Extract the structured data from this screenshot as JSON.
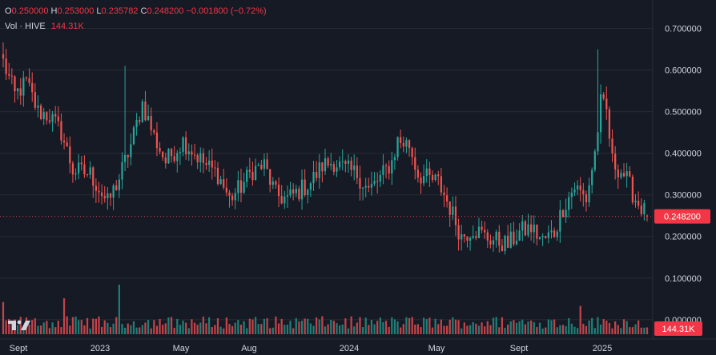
{
  "header": {
    "ohlc": [
      {
        "key": "O",
        "value": "0.250000"
      },
      {
        "key": "H",
        "value": "0.253000"
      },
      {
        "key": "L",
        "value": "0.235782"
      },
      {
        "key": "C",
        "value": "0.248200"
      }
    ],
    "change": "−0.001800 (−0.72%)",
    "vol_label": "Vol · HIVE",
    "vol_value": "144.31K"
  },
  "colors": {
    "up": "#26a69a",
    "down": "#ef5350",
    "up_vol": "#1f7f77",
    "down_vol": "#c2444a",
    "grid": "#262a34",
    "text": "#d1d4dc",
    "background": "#161a25",
    "last_price": "#f23645"
  },
  "icons": {
    "logo": "tradingview-logo-icon"
  },
  "chart_data": {
    "type": "candlestick",
    "symbol": "HIVE",
    "y_ticks": [
      "0.700000",
      "0.600000",
      "0.500000",
      "0.400000",
      "0.300000",
      "0.200000",
      "0.100000",
      "0.000000"
    ],
    "y_range": [
      -0.01,
      0.73
    ],
    "x_ticks": [
      "Sept",
      "2023",
      "May",
      "Aug",
      "2024",
      "May",
      "Sept",
      "2025"
    ],
    "last_price_label": "0.248200",
    "last_volume_label": "144.31K",
    "volume_max_k": 1050,
    "keypoints": [
      [
        0,
        0.62
      ],
      [
        4,
        0.54
      ],
      [
        8,
        0.57
      ],
      [
        12,
        0.5
      ],
      [
        16,
        0.49
      ],
      [
        20,
        0.45
      ],
      [
        24,
        0.36
      ],
      [
        30,
        0.35
      ],
      [
        36,
        0.28
      ],
      [
        40,
        0.34
      ],
      [
        44,
        0.42
      ],
      [
        48,
        0.52
      ],
      [
        52,
        0.44
      ],
      [
        56,
        0.38
      ],
      [
        62,
        0.43
      ],
      [
        66,
        0.4
      ],
      [
        70,
        0.37
      ],
      [
        74,
        0.35
      ],
      [
        78,
        0.29
      ],
      [
        82,
        0.32
      ],
      [
        86,
        0.36
      ],
      [
        90,
        0.37
      ],
      [
        94,
        0.3
      ],
      [
        98,
        0.29
      ],
      [
        102,
        0.31
      ],
      [
        106,
        0.33
      ],
      [
        110,
        0.37
      ],
      [
        114,
        0.38
      ],
      [
        118,
        0.36
      ],
      [
        122,
        0.35
      ],
      [
        126,
        0.31
      ],
      [
        130,
        0.34
      ],
      [
        134,
        0.38
      ],
      [
        136,
        0.43
      ],
      [
        140,
        0.42
      ],
      [
        143,
        0.35
      ],
      [
        146,
        0.34
      ],
      [
        150,
        0.33
      ],
      [
        154,
        0.27
      ],
      [
        158,
        0.2
      ],
      [
        162,
        0.22
      ],
      [
        166,
        0.2
      ],
      [
        170,
        0.19
      ],
      [
        174,
        0.18
      ],
      [
        178,
        0.21
      ],
      [
        182,
        0.22
      ],
      [
        186,
        0.19
      ],
      [
        190,
        0.21
      ],
      [
        193,
        0.27
      ],
      [
        197,
        0.32
      ],
      [
        201,
        0.29
      ],
      [
        204,
        0.4
      ],
      [
        206,
        0.52
      ],
      [
        208,
        0.5
      ],
      [
        210,
        0.38
      ],
      [
        214,
        0.35
      ],
      [
        218,
        0.29
      ],
      [
        222,
        0.25
      ]
    ]
  }
}
